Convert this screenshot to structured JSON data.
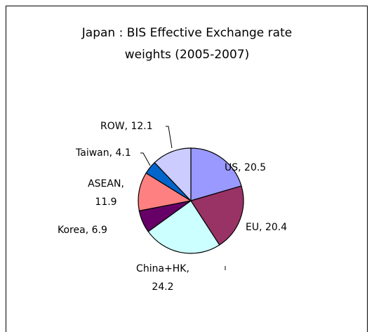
{
  "chart_data": {
    "type": "pie",
    "title": "Japan : BIS Effective Exchange rate\nweights (2005-2007)",
    "categories": [
      "US",
      "EU",
      "China+HK",
      "Korea",
      "ASEAN",
      "Taiwan",
      "ROW"
    ],
    "values": [
      20.5,
      20.4,
      24.2,
      6.9,
      11.9,
      4.1,
      12.1
    ],
    "value_labels": [
      "US, 20.5",
      "EU, 20.4",
      "China+HK,\n24.2",
      "Korea, 6.9",
      "ASEAN,\n11.9",
      "Taiwan, 4.1",
      "ROW, 12.1"
    ],
    "colors": [
      "#9999ff",
      "#993366",
      "#ccffff",
      "#660066",
      "#ff8080",
      "#0066cc",
      "#ccccff"
    ]
  }
}
